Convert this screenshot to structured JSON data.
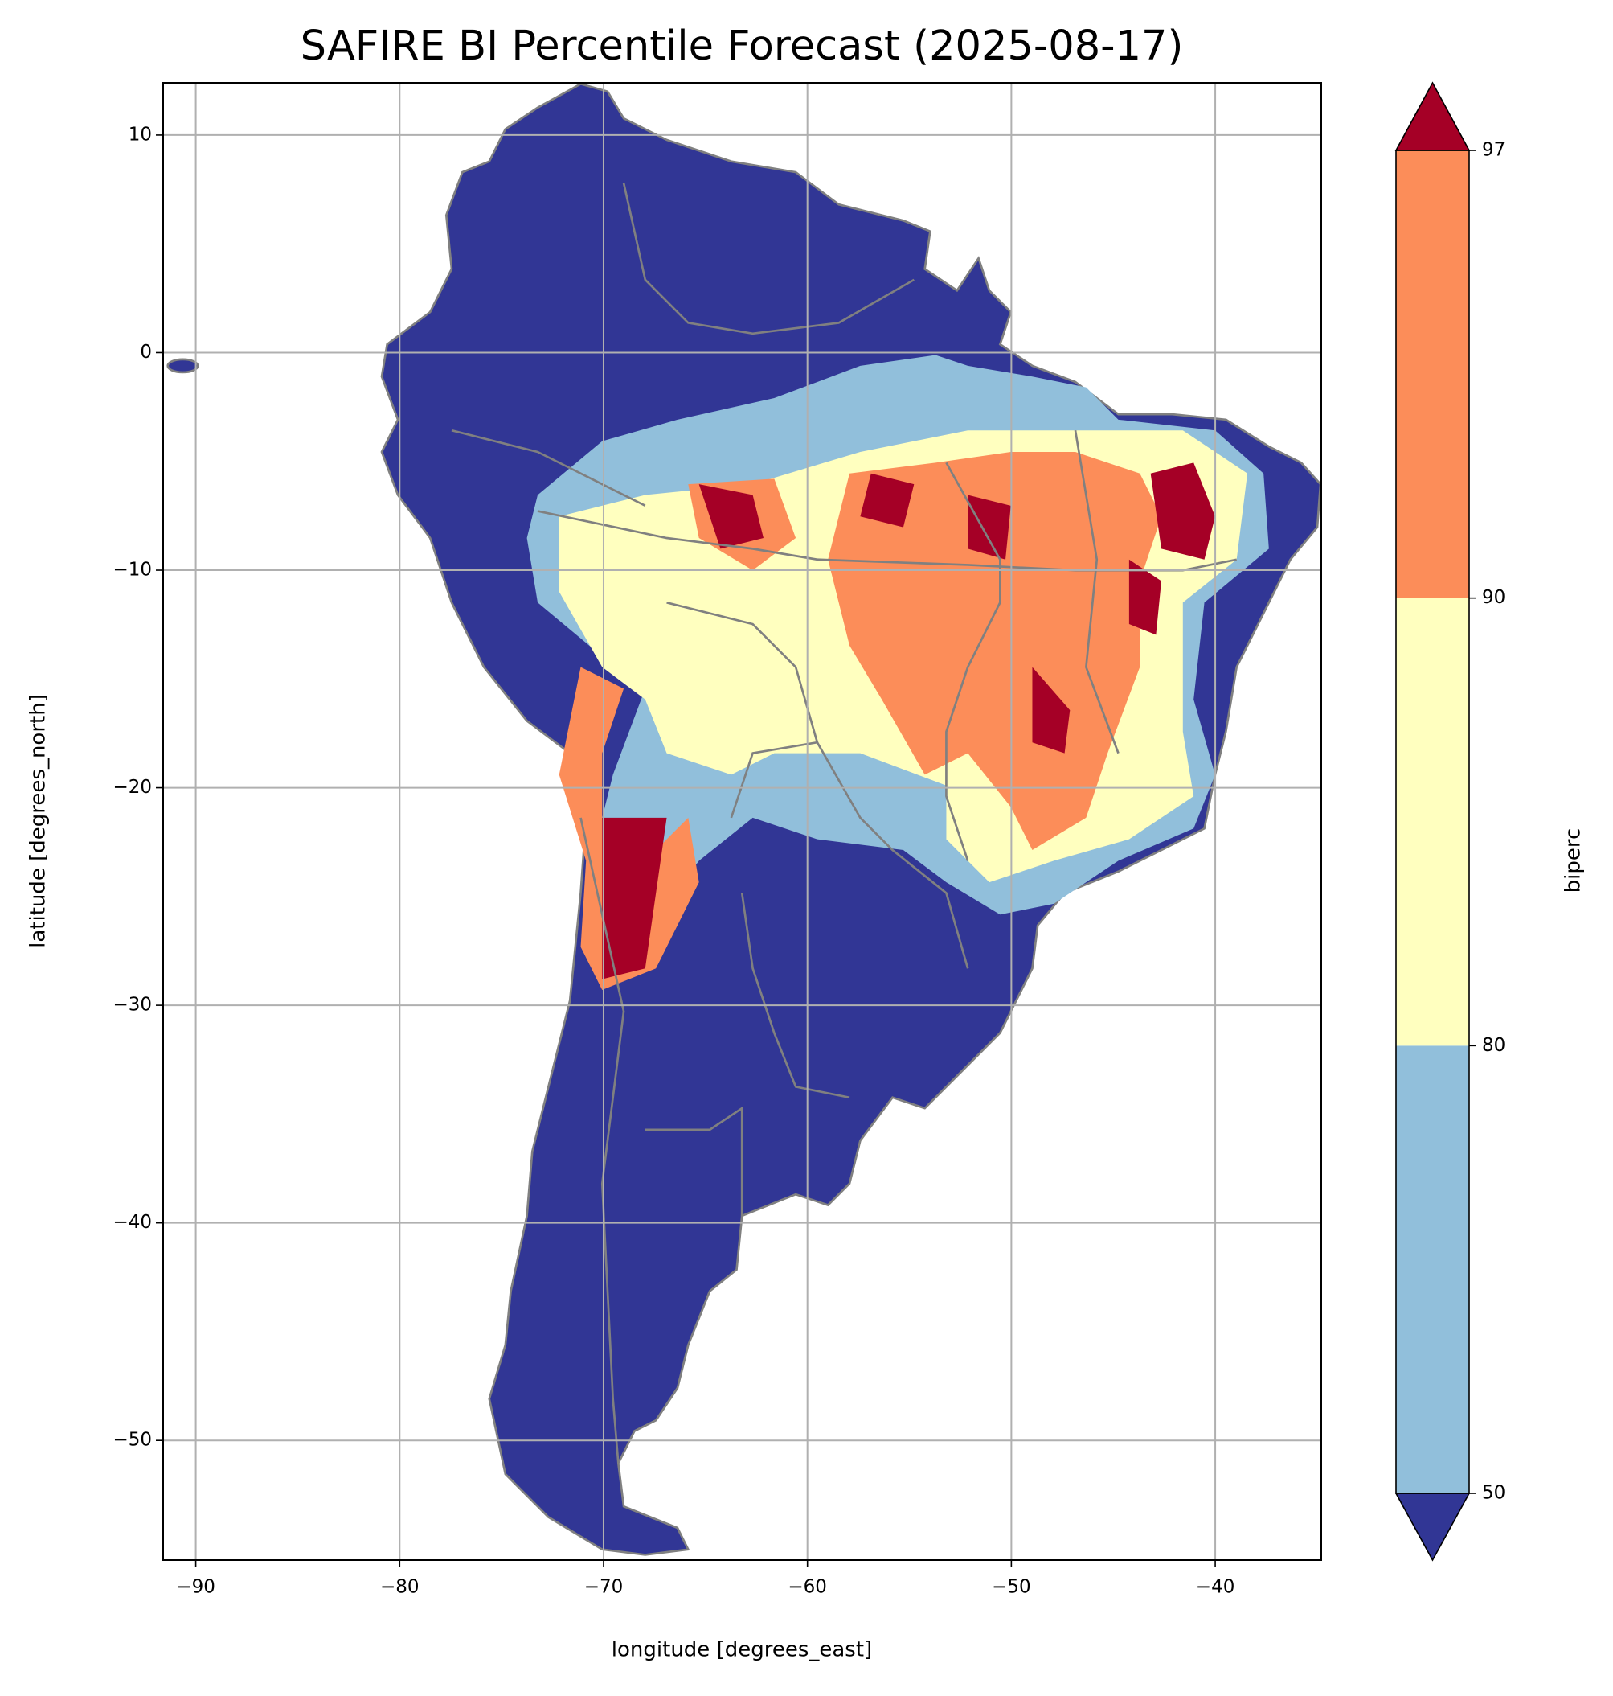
{
  "chart_data": {
    "type": "map",
    "title": "SAFIRE BI Percentile Forecast (2025-08-17)",
    "xlabel": "longitude [degrees_east]",
    "ylabel": "latitude [degrees_north]",
    "xlim": [
      -91.6,
      -34.8
    ],
    "ylim": [
      -55.5,
      12.4
    ],
    "xticks": [
      {
        "value": -90,
        "label": "−90"
      },
      {
        "value": -80,
        "label": "−80"
      },
      {
        "value": -70,
        "label": "−70"
      },
      {
        "value": -60,
        "label": "−60"
      },
      {
        "value": -50,
        "label": "−50"
      },
      {
        "value": -40,
        "label": "−40"
      }
    ],
    "yticks": [
      10,
      0,
      {
        "value": -10,
        "label": "−10"
      },
      {
        "value": -20,
        "label": "−20"
      },
      {
        "value": -30,
        "label": "−30"
      },
      {
        "value": -40,
        "label": "−40"
      },
      {
        "value": -50,
        "label": "−50"
      }
    ],
    "grid": true,
    "colorbar": {
      "label": "biperc",
      "ticks": [
        50,
        80,
        90,
        97
      ],
      "extend": "both",
      "colors": [
        "#313695",
        "#91bfdb",
        "#ffffbf",
        "#fc8d59",
        "#a50026"
      ]
    }
  }
}
